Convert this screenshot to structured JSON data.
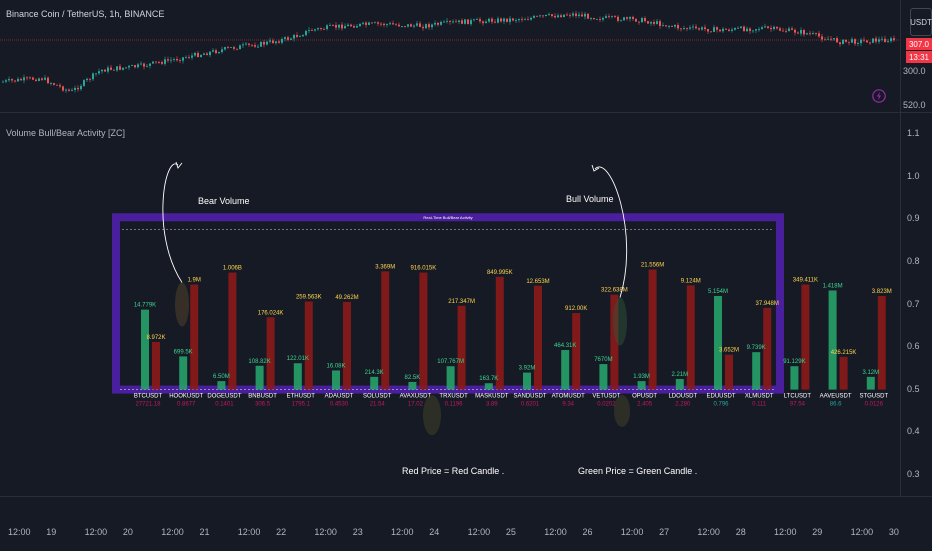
{
  "header": {
    "symbol_title": "Binance Coin / TetherUS, 1h, BINANCE",
    "currency_button": "USDT",
    "last_price": "307.0",
    "countdown": "13:31",
    "price_scale_low": "300.0",
    "price_scale_bottom": "520.0"
  },
  "indicator": {
    "title": "Volume Bull/Bear Activity [ZC]",
    "panel_title": "Real-Time Bull/Bear Activity",
    "y_ticks": [
      "1.1",
      "1.0",
      "0.9",
      "0.8",
      "0.7",
      "0.6",
      "0.5",
      "0.4",
      "0.3"
    ]
  },
  "annotations": {
    "bear_volume": "Bear Volume",
    "bull_volume": "Bull Volume",
    "red_price": "Red Price = Red Candle .",
    "green_price": "Green Price = Green Candle ."
  },
  "time_axis": [
    "12:00",
    "19",
    "12:00",
    "20",
    "12:00",
    "21",
    "12:00",
    "22",
    "12:00",
    "23",
    "12:00",
    "24",
    "12:00",
    "25",
    "12:00",
    "26",
    "12:00",
    "27",
    "12:00",
    "28",
    "12:00",
    "29",
    "12:00",
    "30"
  ],
  "colors": {
    "background": "#161a25",
    "bull": "#26a269",
    "bear": "#8b1a1a",
    "panel_border": "#4a1f9e",
    "price_red": "#c2185b",
    "price_green": "#26a69a"
  },
  "chart_data": {
    "type": "bar",
    "title": "Real-Time Bull/Bear Activity",
    "categories": [
      "BTCUSDT",
      "HOOKUSDT",
      "DOGEUSDT",
      "BNBUSDT",
      "ETHUSDT",
      "ADAUSDT",
      "SOLUSDT",
      "AVAXUSDT",
      "TRXUSDT",
      "MASKUSDT",
      "SANDUSDT",
      "ATOMUSDT",
      "VETUSDT",
      "OPUSDT",
      "LDOUSDT",
      "EDUUSDT",
      "XLMUSDT",
      "LTCUSDT",
      "AAVEUSDT",
      "STGUSDT"
    ],
    "bull_labels": [
      "14.779K",
      "699.5K",
      "6.50M",
      "108.82K",
      "122.01K",
      "16.08K",
      "214.3K",
      "82.5K",
      "107.767M",
      "163.7K",
      "3.92M",
      "464.31K",
      "7670M",
      "1.93M",
      "2.21M",
      "5.154M",
      "9.739K",
      "91.129K",
      "1.418M",
      "3.12M"
    ],
    "bear_labels": [
      "8.972K",
      "1.9M",
      "1.006B",
      "176.024K",
      "259.563K",
      "49.262M",
      "3.369M",
      "916.015K",
      "217.347M",
      "849.995K",
      "12.653M",
      "912.00K",
      "322.638M",
      "21.556M",
      "9.124M",
      "3.652M",
      "37.948M",
      "349.411K",
      "426.215K",
      "3.823M"
    ],
    "bull_values": [
      0.688,
      0.578,
      0.52,
      0.556,
      0.562,
      0.545,
      0.53,
      0.518,
      0.555,
      0.515,
      0.54,
      0.593,
      0.56,
      0.52,
      0.525,
      0.72,
      0.588,
      0.555,
      0.733,
      0.53
    ],
    "bear_values": [
      0.612,
      0.747,
      0.775,
      0.67,
      0.707,
      0.706,
      0.778,
      0.775,
      0.697,
      0.765,
      0.744,
      0.68,
      0.723,
      0.782,
      0.745,
      0.582,
      0.692,
      0.747,
      0.577,
      0.72
    ],
    "prices": [
      "27721.18",
      "0.8677",
      "0.1401",
      "306.5",
      "1795.1",
      "0.4530",
      "21.54",
      "17.02",
      "0.1196",
      "3.89",
      "0.6201",
      "9.34",
      "0.0202",
      "2.405",
      "2.280",
      "0.796",
      "0.111",
      "97.54",
      "86.6",
      "0.0126"
    ],
    "price_colors": [
      "red",
      "red",
      "red",
      "red",
      "red",
      "red",
      "red",
      "red",
      "red",
      "red",
      "red",
      "red",
      "red",
      "red",
      "red",
      "green",
      "red",
      "red",
      "green",
      "red"
    ],
    "ylim": [
      0.25,
      1.15
    ],
    "y_axis_side": "right"
  }
}
